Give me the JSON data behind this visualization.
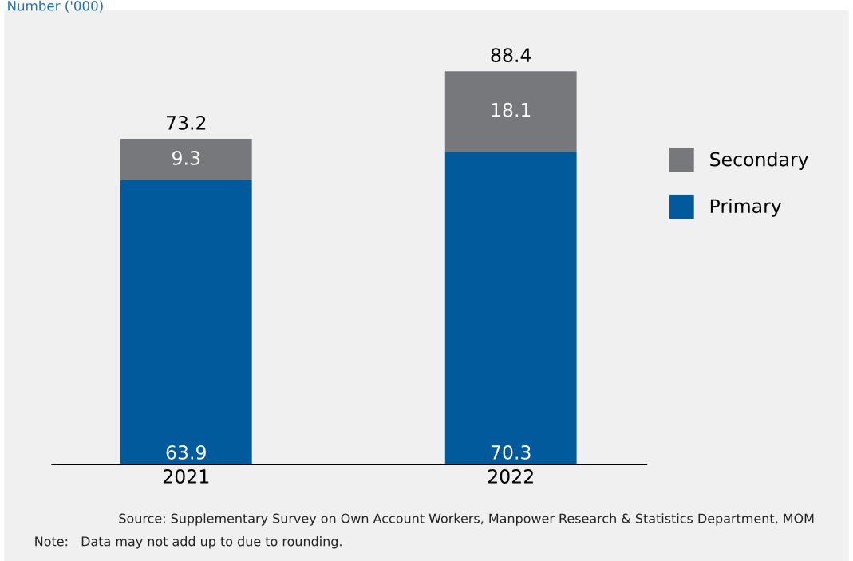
{
  "chart_data": {
    "type": "bar",
    "stacked": true,
    "ylabel": "Number ('000)",
    "categories": [
      "2021",
      "2022"
    ],
    "series": [
      {
        "name": "Primary",
        "color": "#005a9c",
        "values": [
          63.9,
          70.3
        ]
      },
      {
        "name": "Secondary",
        "color": "#77787b",
        "values": [
          9.3,
          18.1
        ]
      }
    ],
    "data_labels": true,
    "totals": [
      "73.2",
      "88.4"
    ],
    "legend": "right",
    "grid": false,
    "tick_labels": "x",
    "annotations": [
      "Source: Supplementary Survey on Own Account Workers, Manpower Research & Statistics Department, MOM",
      "Note:   Data may not add up to due to rounding."
    ]
  }
}
